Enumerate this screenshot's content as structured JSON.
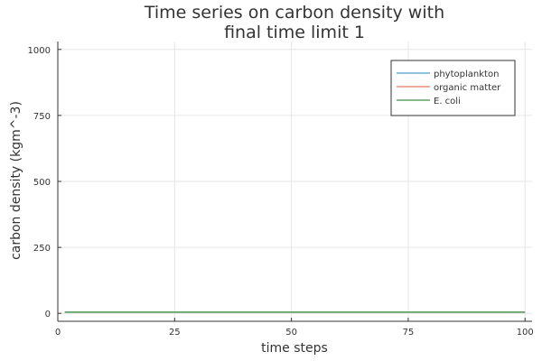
{
  "chart_data": {
    "type": "line",
    "title": [
      "Time series on carbon density with",
      "final time limit 1"
    ],
    "xlabel": "time steps",
    "ylabel": "carbon density (kgm^-3)",
    "xlim": [
      0,
      101.5
    ],
    "ylim": [
      -30,
      1030
    ],
    "xticks": [
      0,
      25,
      50,
      75,
      100
    ],
    "yticks": [
      0,
      250,
      500,
      750,
      1000
    ],
    "grid": true,
    "legend_position": "top-right",
    "series": [
      {
        "name": "phytoplankton",
        "color": "#6aaed6",
        "x": [
          1.5,
          100
        ],
        "values": [
          5,
          5
        ]
      },
      {
        "name": "organic matter",
        "color": "#e9907a",
        "x": [
          1.5,
          100
        ],
        "values": [
          5,
          5
        ]
      },
      {
        "name": "E. coli",
        "color": "#5fa463",
        "x": [
          1.5,
          100
        ],
        "values": [
          5,
          5
        ]
      }
    ]
  }
}
